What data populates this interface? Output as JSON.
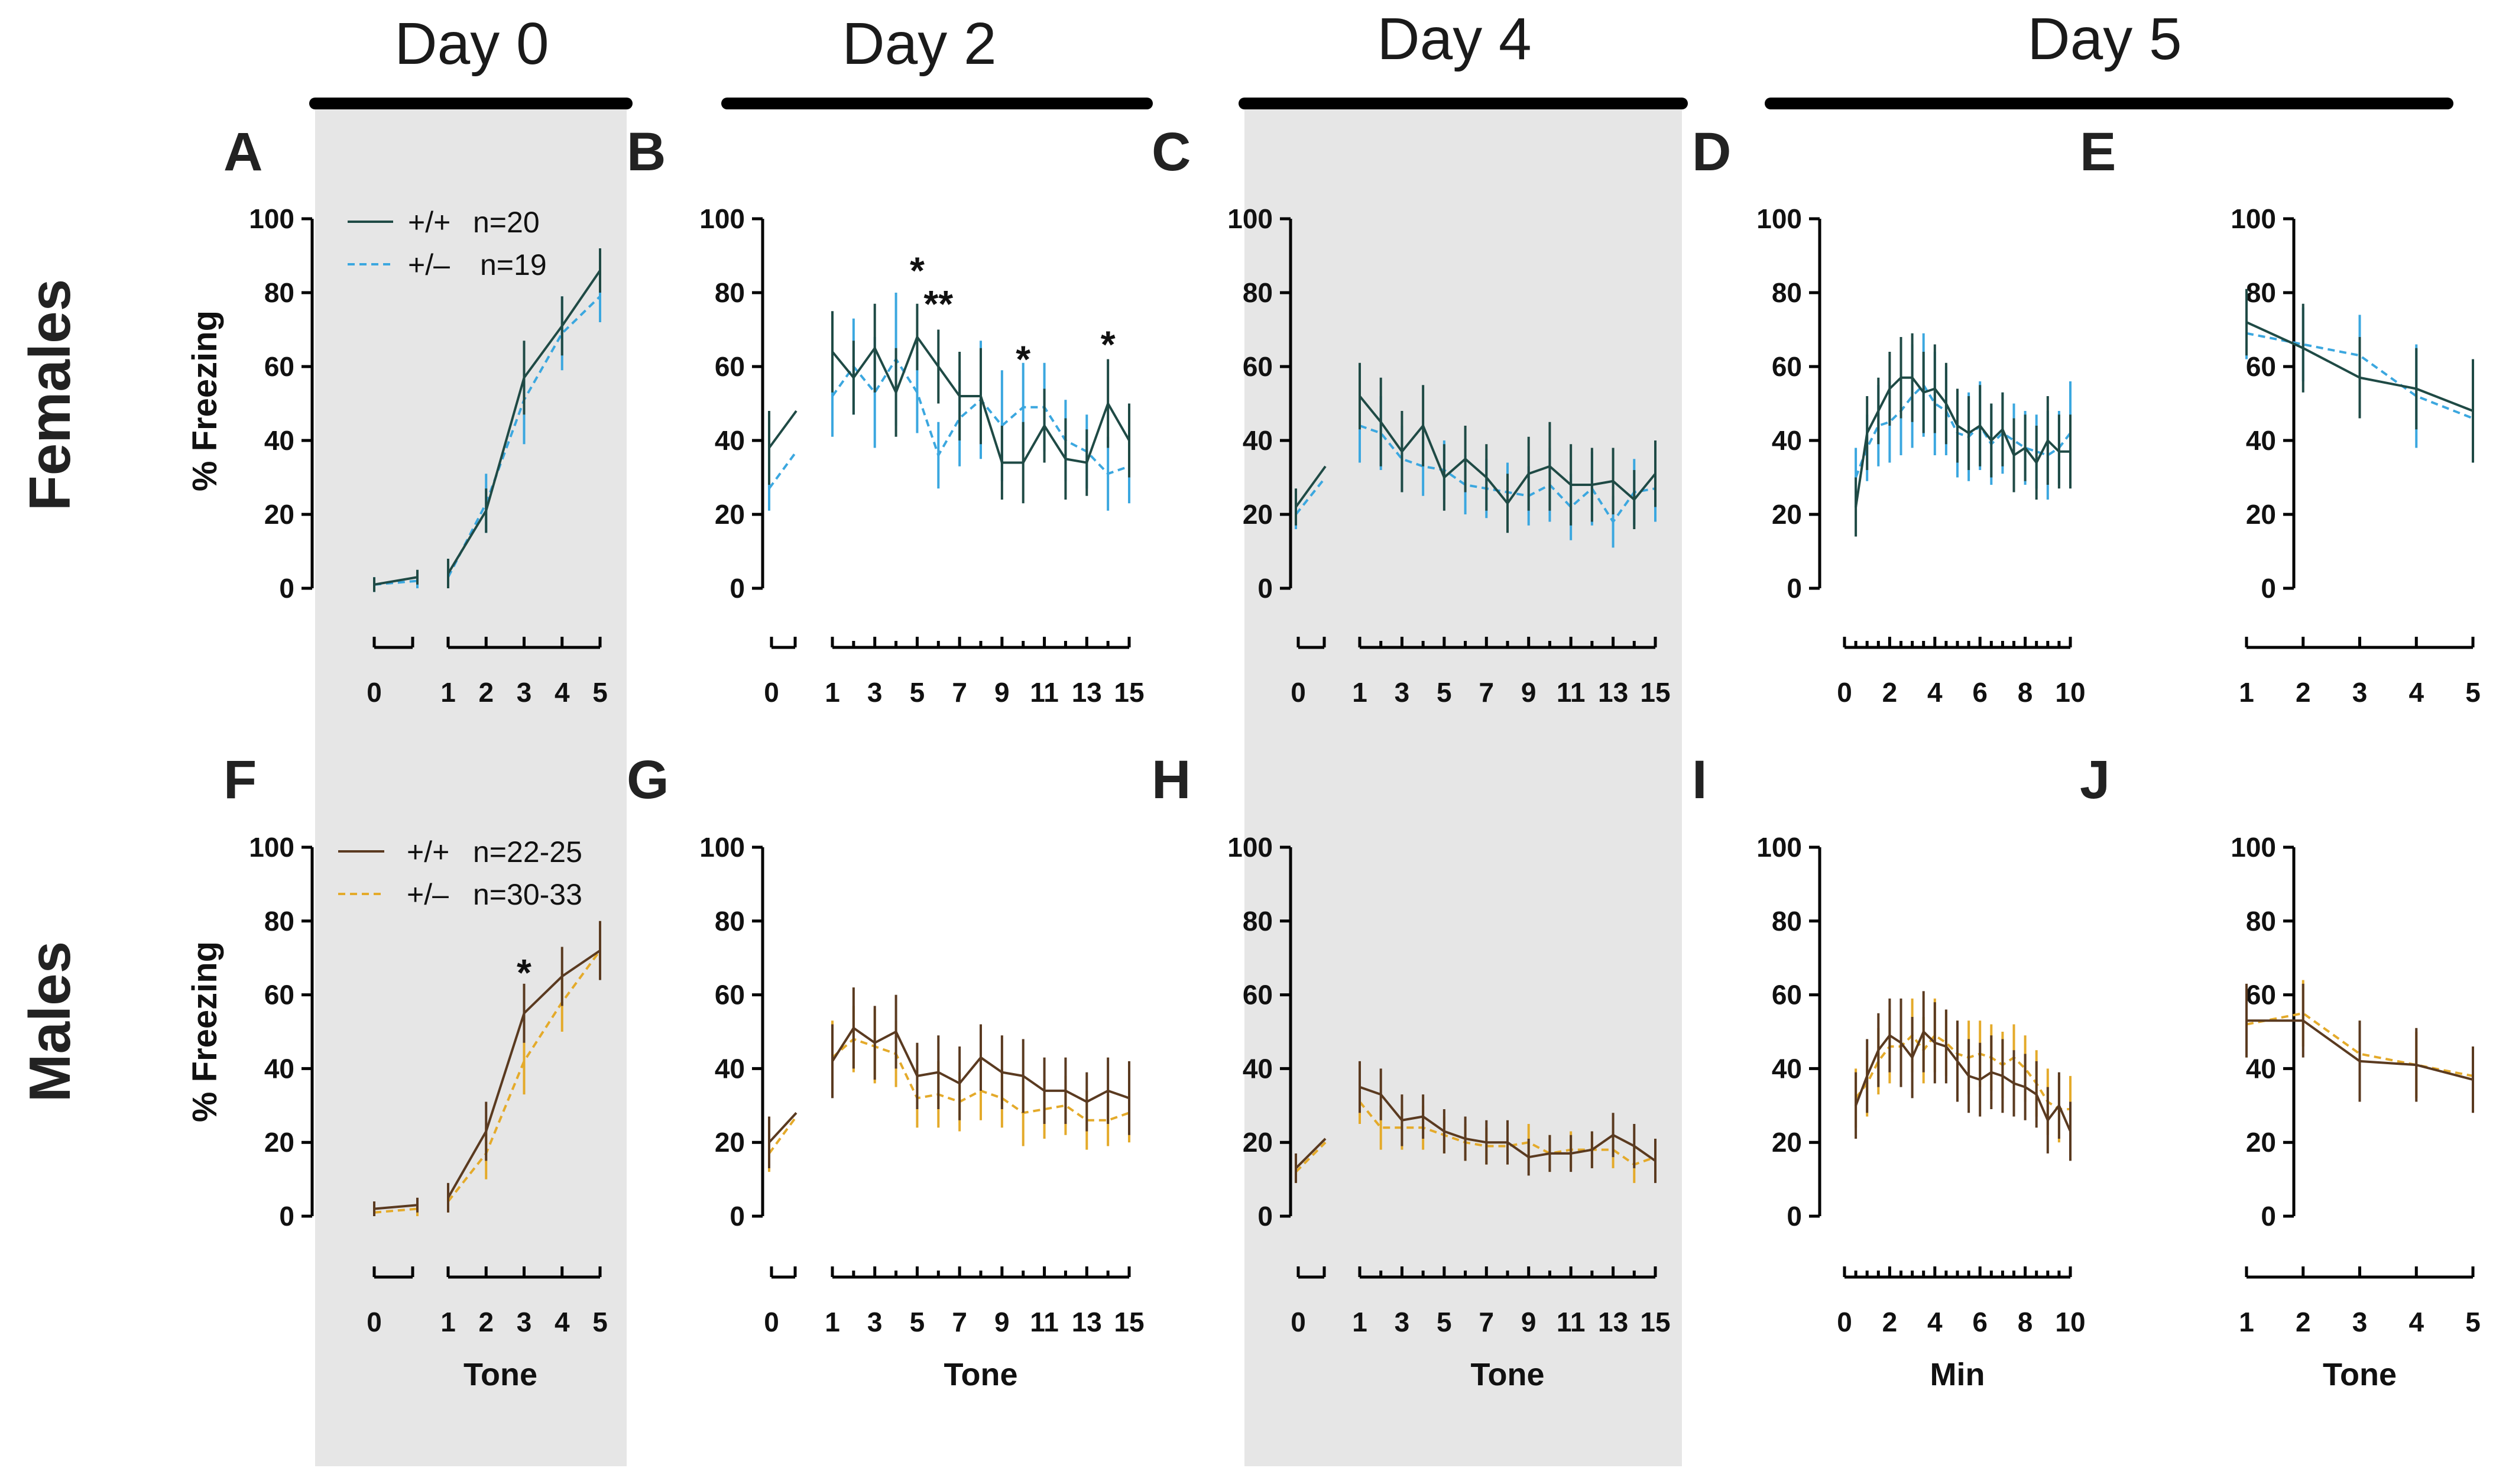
{
  "colors": {
    "female_wt": "#1f4a45",
    "female_het": "#3ba7df",
    "male_wt": "#5a3a20",
    "male_het": "#e4aa2a",
    "shade": "#e6e6e6",
    "axis": "#000000"
  },
  "days": [
    "Day 0",
    "Day 2",
    "Day 4",
    "Day 5"
  ],
  "rows": [
    "Females",
    "Males"
  ],
  "ylabel": "% Freezing",
  "yticks": [
    0,
    20,
    40,
    60,
    80,
    100
  ],
  "legends": {
    "females": [
      {
        "key": "wt",
        "label": "+/+",
        "n": "n=20"
      },
      {
        "key": "het",
        "label": "+/–",
        "n": "n=19"
      }
    ],
    "males": [
      {
        "key": "wt",
        "label": "+/+",
        "n": "n=22-25"
      },
      {
        "key": "het",
        "label": "+/–",
        "n": "n=30-33"
      }
    ]
  },
  "chart_data": [
    {
      "id": "A",
      "type": "line",
      "sex": "female",
      "kind": "tones5",
      "ylim": [
        0,
        100
      ],
      "xticks": [
        "0",
        "1",
        "2",
        "3",
        "4",
        "5"
      ],
      "xlabel": "",
      "base": {
        "wt": [
          [
            1,
            3
          ],
          [
            2,
            2
          ]
        ],
        "het": [
          [
            1,
            2
          ],
          [
            2,
            2
          ]
        ]
      },
      "wt": {
        "x": [
          1,
          2,
          3,
          4,
          5
        ],
        "y": [
          4,
          21,
          57,
          71,
          86
        ],
        "err": [
          4,
          6,
          10,
          8,
          6
        ]
      },
      "het": {
        "x": [
          1,
          2,
          3,
          4,
          5
        ],
        "y": [
          3,
          23,
          51,
          69,
          79
        ],
        "err": [
          3,
          8,
          12,
          10,
          7
        ]
      },
      "stars": []
    },
    {
      "id": "B",
      "type": "line",
      "sex": "female",
      "kind": "tones15",
      "ylim": [
        0,
        100
      ],
      "xticks": [
        "0",
        "1",
        "3",
        "5",
        "7",
        "9",
        "11",
        "13",
        "15"
      ],
      "xlabel": "",
      "base": {
        "wt": [
          [
            38,
            48
          ],
          [
            10,
            0
          ]
        ],
        "het": [
          [
            27,
            37
          ],
          [
            6,
            0
          ]
        ]
      },
      "wt": {
        "x": [
          1,
          2,
          3,
          4,
          5,
          6,
          7,
          8,
          9,
          10,
          11,
          12,
          13,
          14,
          15
        ],
        "y": [
          64,
          57,
          65,
          53,
          68,
          60,
          52,
          52,
          34,
          34,
          44,
          35,
          34,
          50,
          40
        ],
        "err": [
          11,
          10,
          12,
          12,
          9,
          10,
          12,
          13,
          10,
          11,
          10,
          11,
          9,
          12,
          10
        ]
      },
      "het": {
        "x": [
          1,
          2,
          3,
          4,
          5,
          6,
          7,
          8,
          9,
          10,
          11,
          12,
          13,
          14,
          15
        ],
        "y": [
          52,
          60,
          53,
          62,
          53,
          36,
          46,
          51,
          44,
          49,
          49,
          40,
          37,
          31,
          33
        ],
        "err": [
          11,
          13,
          15,
          18,
          11,
          9,
          13,
          16,
          15,
          12,
          12,
          11,
          10,
          10,
          10
        ]
      },
      "stars": [
        {
          "x": 5,
          "y": 86,
          "text": "*"
        },
        {
          "x": 6,
          "y": 77,
          "text": "**"
        },
        {
          "x": 10,
          "y": 62,
          "text": "*"
        },
        {
          "x": 14,
          "y": 66,
          "text": "*"
        }
      ]
    },
    {
      "id": "C",
      "type": "line",
      "sex": "female",
      "kind": "tones15",
      "ylim": [
        0,
        100
      ],
      "xticks": [
        "0",
        "1",
        "3",
        "5",
        "7",
        "9",
        "11",
        "13",
        "15"
      ],
      "xlabel": "",
      "base": {
        "wt": [
          [
            22,
            33
          ],
          [
            5,
            0
          ]
        ],
        "het": [
          [
            20,
            30
          ],
          [
            4,
            0
          ]
        ]
      },
      "wt": {
        "x": [
          1,
          2,
          3,
          4,
          5,
          6,
          7,
          8,
          9,
          10,
          11,
          12,
          13,
          14,
          15
        ],
        "y": [
          52,
          45,
          37,
          44,
          30,
          35,
          30,
          23,
          31,
          33,
          28,
          28,
          29,
          24,
          31
        ],
        "err": [
          9,
          12,
          11,
          11,
          9,
          9,
          9,
          8,
          10,
          12,
          11,
          10,
          9,
          8,
          9
        ]
      },
      "het": {
        "x": [
          1,
          2,
          3,
          4,
          5,
          6,
          7,
          8,
          9,
          10,
          11,
          12,
          13,
          14,
          15
        ],
        "y": [
          44,
          42,
          35,
          33,
          32,
          28,
          27,
          26,
          25,
          28,
          22,
          27,
          18,
          26,
          27
        ],
        "err": [
          10,
          10,
          9,
          8,
          8,
          8,
          8,
          8,
          8,
          10,
          9,
          10,
          7,
          9,
          9
        ]
      },
      "stars": []
    },
    {
      "id": "D",
      "type": "line",
      "sex": "female",
      "kind": "min10",
      "ylim": [
        0,
        100
      ],
      "xticks": [
        "0",
        "2",
        "4",
        "6",
        "8",
        "10"
      ],
      "xlabel": "",
      "wt": {
        "x": [
          0.5,
          1,
          1.5,
          2,
          2.5,
          3,
          3.5,
          4,
          4.5,
          5,
          5.5,
          6,
          6.5,
          7,
          7.5,
          8,
          8.5,
          9,
          9.5,
          10
        ],
        "y": [
          22,
          42,
          48,
          54,
          57,
          57,
          53,
          54,
          50,
          44,
          42,
          44,
          40,
          43,
          36,
          38,
          34,
          40,
          37,
          37
        ],
        "err": [
          8,
          10,
          9,
          10,
          11,
          12,
          11,
          12,
          11,
          10,
          10,
          11,
          10,
          10,
          10,
          9,
          10,
          12,
          10,
          10
        ]
      },
      "het": {
        "x": [
          0.5,
          1,
          1.5,
          2,
          2.5,
          3,
          3.5,
          4,
          4.5,
          5,
          5.5,
          6,
          6.5,
          7,
          7.5,
          8,
          8.5,
          9,
          9.5,
          10
        ],
        "y": [
          30,
          38,
          44,
          45,
          48,
          52,
          55,
          50,
          48,
          42,
          41,
          44,
          39,
          42,
          40,
          38,
          37,
          36,
          38,
          42
        ],
        "err": [
          8,
          9,
          11,
          11,
          12,
          14,
          14,
          14,
          12,
          12,
          12,
          12,
          11,
          11,
          10,
          10,
          10,
          12,
          10,
          14
        ]
      },
      "stars": []
    },
    {
      "id": "E",
      "type": "line",
      "sex": "female",
      "kind": "tones5",
      "ylim": [
        0,
        100
      ],
      "xticks": [
        "1",
        "2",
        "3",
        "4",
        "5"
      ],
      "xlabel": "",
      "wt": {
        "x": [
          1,
          2,
          3,
          4,
          5
        ],
        "y": [
          72,
          65,
          57,
          54,
          48
        ],
        "err": [
          9,
          12,
          11,
          11,
          14
        ]
      },
      "het": {
        "x": [
          1,
          2,
          3,
          4,
          5
        ],
        "y": [
          69,
          66,
          63,
          52,
          46
        ],
        "err": [
          7,
          10,
          11,
          14,
          10
        ]
      },
      "stars": []
    },
    {
      "id": "F",
      "type": "line",
      "sex": "male",
      "kind": "tones5",
      "ylim": [
        0,
        100
      ],
      "xticks": [
        "0",
        "1",
        "2",
        "3",
        "4",
        "5"
      ],
      "xlabel": "Tone",
      "base": {
        "wt": [
          [
            2,
            3
          ],
          [
            2,
            2
          ]
        ],
        "het": [
          [
            1,
            2
          ],
          [
            1,
            2
          ]
        ]
      },
      "wt": {
        "x": [
          1,
          2,
          3,
          4,
          5
        ],
        "y": [
          5,
          23,
          55,
          65,
          72
        ],
        "err": [
          4,
          8,
          8,
          8,
          8
        ]
      },
      "het": {
        "x": [
          1,
          2,
          3,
          4,
          5
        ],
        "y": [
          4,
          17,
          42,
          58,
          72
        ],
        "err": [
          3,
          7,
          9,
          8,
          7
        ]
      },
      "stars": [
        {
          "x": 3,
          "y": 66,
          "text": "*"
        }
      ]
    },
    {
      "id": "G",
      "type": "line",
      "sex": "male",
      "kind": "tones15",
      "ylim": [
        0,
        100
      ],
      "xticks": [
        "0",
        "1",
        "3",
        "5",
        "7",
        "9",
        "11",
        "13",
        "15"
      ],
      "xlabel": "Tone",
      "base": {
        "wt": [
          [
            20,
            28
          ],
          [
            7,
            0
          ]
        ],
        "het": [
          [
            17,
            27
          ],
          [
            5,
            0
          ]
        ]
      },
      "wt": {
        "x": [
          1,
          2,
          3,
          4,
          5,
          6,
          7,
          8,
          9,
          10,
          11,
          12,
          13,
          14,
          15
        ],
        "y": [
          42,
          51,
          47,
          50,
          38,
          39,
          36,
          43,
          39,
          38,
          34,
          34,
          31,
          34,
          32
        ],
        "err": [
          10,
          11,
          10,
          10,
          9,
          10,
          10,
          9,
          10,
          10,
          9,
          9,
          8,
          9,
          10
        ]
      },
      "het": {
        "x": [
          1,
          2,
          3,
          4,
          5,
          6,
          7,
          8,
          9,
          10,
          11,
          12,
          13,
          14,
          15
        ],
        "y": [
          43,
          48,
          46,
          44,
          32,
          33,
          31,
          34,
          32,
          28,
          29,
          30,
          26,
          26,
          28
        ],
        "err": [
          10,
          9,
          10,
          9,
          8,
          9,
          8,
          8,
          8,
          9,
          8,
          8,
          8,
          7,
          8
        ]
      },
      "stars": []
    },
    {
      "id": "H",
      "type": "line",
      "sex": "male",
      "kind": "tones15",
      "ylim": [
        0,
        100
      ],
      "xticks": [
        "0",
        "1",
        "3",
        "5",
        "7",
        "9",
        "11",
        "13",
        "15"
      ],
      "xlabel": "Tone",
      "base": {
        "wt": [
          [
            13,
            21
          ],
          [
            4,
            0
          ]
        ],
        "het": [
          [
            12,
            20
          ],
          [
            3,
            0
          ]
        ]
      },
      "wt": {
        "x": [
          1,
          2,
          3,
          4,
          5,
          6,
          7,
          8,
          9,
          10,
          11,
          12,
          13,
          14,
          15
        ],
        "y": [
          35,
          33,
          26,
          27,
          23,
          21,
          20,
          20,
          16,
          17,
          17,
          18,
          22,
          19,
          15
        ],
        "err": [
          7,
          7,
          7,
          6,
          6,
          6,
          6,
          6,
          5,
          5,
          5,
          5,
          6,
          6,
          6
        ]
      },
      "het": {
        "x": [
          1,
          2,
          3,
          4,
          5,
          6,
          7,
          8,
          9,
          10,
          11,
          12,
          13,
          14,
          15
        ],
        "y": [
          31,
          24,
          24,
          24,
          22,
          20,
          19,
          19,
          20,
          17,
          18,
          18,
          18,
          14,
          16
        ],
        "err": [
          6,
          6,
          6,
          6,
          5,
          5,
          5,
          5,
          5,
          5,
          5,
          5,
          5,
          5,
          5
        ]
      },
      "stars": []
    },
    {
      "id": "I",
      "type": "line",
      "sex": "male",
      "kind": "min10",
      "ylim": [
        0,
        100
      ],
      "xticks": [
        "0",
        "2",
        "4",
        "6",
        "8",
        "10"
      ],
      "xlabel": "Min",
      "wt": {
        "x": [
          0.5,
          1,
          1.5,
          2,
          2.5,
          3,
          3.5,
          4,
          4.5,
          5,
          5.5,
          6,
          6.5,
          7,
          7.5,
          8,
          8.5,
          9,
          9.5,
          10
        ],
        "y": [
          30,
          38,
          45,
          49,
          47,
          43,
          50,
          47,
          46,
          42,
          38,
          37,
          39,
          38,
          36,
          35,
          33,
          26,
          30,
          23
        ],
        "err": [
          9,
          10,
          10,
          10,
          12,
          11,
          11,
          11,
          10,
          11,
          10,
          10,
          10,
          10,
          9,
          9,
          9,
          9,
          9,
          8
        ]
      },
      "het": {
        "x": [
          0.5,
          1,
          1.5,
          2,
          2.5,
          3,
          3.5,
          4,
          4.5,
          5,
          5.5,
          6,
          6.5,
          7,
          7.5,
          8,
          8.5,
          9,
          9.5,
          10
        ],
        "y": [
          32,
          36,
          42,
          46,
          46,
          49,
          45,
          49,
          47,
          44,
          43,
          44,
          43,
          41,
          43,
          40,
          36,
          31,
          29,
          29
        ],
        "err": [
          8,
          9,
          9,
          10,
          10,
          10,
          9,
          10,
          9,
          9,
          10,
          9,
          9,
          9,
          9,
          9,
          9,
          9,
          9,
          9
        ]
      },
      "stars": []
    },
    {
      "id": "J",
      "type": "line",
      "sex": "male",
      "kind": "tones5",
      "ylim": [
        0,
        100
      ],
      "xticks": [
        "1",
        "2",
        "3",
        "4",
        "5"
      ],
      "xlabel": "Tone",
      "wt": {
        "x": [
          1,
          2,
          3,
          4,
          5
        ],
        "y": [
          53,
          53,
          42,
          41,
          37
        ],
        "err": [
          10,
          10,
          11,
          10,
          9
        ]
      },
      "het": {
        "x": [
          1,
          2,
          3,
          4,
          5
        ],
        "y": [
          52,
          55,
          44,
          41,
          38
        ],
        "err": [
          9,
          9,
          9,
          9,
          8
        ]
      },
      "stars": []
    }
  ]
}
